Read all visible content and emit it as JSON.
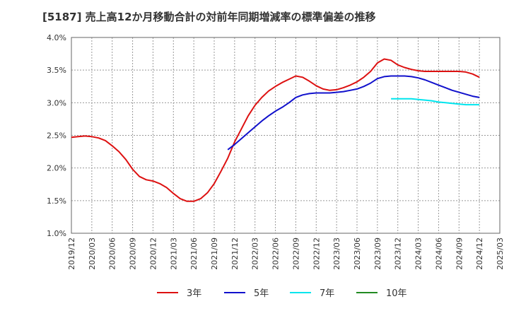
{
  "chart_data": {
    "type": "line",
    "title": "[5187]  売上高12か月移動合計の対前年同期増減率の標準偏差の推移",
    "xlabel": "",
    "ylabel": "",
    "ylim": [
      1.0,
      4.0
    ],
    "y_ticks": [
      "1.0%",
      "1.5%",
      "2.0%",
      "2.5%",
      "3.0%",
      "3.5%",
      "4.0%"
    ],
    "x_ticks": [
      "2019/12",
      "2020/03",
      "2020/06",
      "2020/09",
      "2020/12",
      "2021/03",
      "2021/06",
      "2021/09",
      "2021/12",
      "2022/03",
      "2022/06",
      "2022/09",
      "2022/12",
      "2023/03",
      "2023/06",
      "2023/09",
      "2023/12",
      "2024/03",
      "2024/06",
      "2024/09",
      "2024/12",
      "2025/03"
    ],
    "grid": true,
    "legend_position": "bottom",
    "series": [
      {
        "name": "3年",
        "color": "#dd1111",
        "points": [
          [
            "2019/12",
            2.47
          ],
          [
            "2020/01",
            2.48
          ],
          [
            "2020/02",
            2.49
          ],
          [
            "2020/03",
            2.48
          ],
          [
            "2020/04",
            2.46
          ],
          [
            "2020/05",
            2.42
          ],
          [
            "2020/06",
            2.34
          ],
          [
            "2020/07",
            2.25
          ],
          [
            "2020/08",
            2.13
          ],
          [
            "2020/09",
            1.98
          ],
          [
            "2020/10",
            1.87
          ],
          [
            "2020/11",
            1.82
          ],
          [
            "2020/12",
            1.8
          ],
          [
            "2021/01",
            1.76
          ],
          [
            "2021/02",
            1.7
          ],
          [
            "2021/03",
            1.61
          ],
          [
            "2021/04",
            1.53
          ],
          [
            "2021/05",
            1.49
          ],
          [
            "2021/06",
            1.49
          ],
          [
            "2021/07",
            1.53
          ],
          [
            "2021/08",
            1.62
          ],
          [
            "2021/09",
            1.76
          ],
          [
            "2021/10",
            1.95
          ],
          [
            "2021/11",
            2.15
          ],
          [
            "2021/12",
            2.4
          ],
          [
            "2022/01",
            2.6
          ],
          [
            "2022/02",
            2.8
          ],
          [
            "2022/03",
            2.96
          ],
          [
            "2022/04",
            3.08
          ],
          [
            "2022/05",
            3.18
          ],
          [
            "2022/06",
            3.25
          ],
          [
            "2022/07",
            3.31
          ],
          [
            "2022/08",
            3.36
          ],
          [
            "2022/09",
            3.41
          ],
          [
            "2022/10",
            3.39
          ],
          [
            "2022/11",
            3.33
          ],
          [
            "2022/12",
            3.26
          ],
          [
            "2023/01",
            3.21
          ],
          [
            "2023/02",
            3.19
          ],
          [
            "2023/03",
            3.2
          ],
          [
            "2023/04",
            3.23
          ],
          [
            "2023/05",
            3.27
          ],
          [
            "2023/06",
            3.32
          ],
          [
            "2023/07",
            3.39
          ],
          [
            "2023/08",
            3.48
          ],
          [
            "2023/09",
            3.61
          ],
          [
            "2023/10",
            3.67
          ],
          [
            "2023/11",
            3.65
          ],
          [
            "2023/12",
            3.58
          ],
          [
            "2024/01",
            3.54
          ],
          [
            "2024/02",
            3.51
          ],
          [
            "2024/03",
            3.49
          ],
          [
            "2024/04",
            3.48
          ],
          [
            "2024/05",
            3.48
          ],
          [
            "2024/06",
            3.48
          ],
          [
            "2024/07",
            3.48
          ],
          [
            "2024/08",
            3.48
          ],
          [
            "2024/09",
            3.48
          ],
          [
            "2024/10",
            3.47
          ],
          [
            "2024/11",
            3.44
          ],
          [
            "2024/12",
            3.39
          ]
        ]
      },
      {
        "name": "5年",
        "color": "#1111cc",
        "points": [
          [
            "2021/11",
            2.28
          ],
          [
            "2021/12",
            2.36
          ],
          [
            "2022/01",
            2.45
          ],
          [
            "2022/02",
            2.54
          ],
          [
            "2022/03",
            2.63
          ],
          [
            "2022/04",
            2.72
          ],
          [
            "2022/05",
            2.8
          ],
          [
            "2022/06",
            2.87
          ],
          [
            "2022/07",
            2.93
          ],
          [
            "2022/08",
            3.0
          ],
          [
            "2022/09",
            3.08
          ],
          [
            "2022/10",
            3.12
          ],
          [
            "2022/11",
            3.14
          ],
          [
            "2022/12",
            3.15
          ],
          [
            "2023/01",
            3.15
          ],
          [
            "2023/02",
            3.15
          ],
          [
            "2023/03",
            3.16
          ],
          [
            "2023/04",
            3.17
          ],
          [
            "2023/05",
            3.19
          ],
          [
            "2023/06",
            3.21
          ],
          [
            "2023/07",
            3.25
          ],
          [
            "2023/08",
            3.3
          ],
          [
            "2023/09",
            3.37
          ],
          [
            "2023/10",
            3.4
          ],
          [
            "2023/11",
            3.41
          ],
          [
            "2023/12",
            3.41
          ],
          [
            "2024/01",
            3.41
          ],
          [
            "2024/02",
            3.4
          ],
          [
            "2024/03",
            3.38
          ],
          [
            "2024/04",
            3.35
          ],
          [
            "2024/05",
            3.31
          ],
          [
            "2024/06",
            3.27
          ],
          [
            "2024/07",
            3.23
          ],
          [
            "2024/08",
            3.19
          ],
          [
            "2024/09",
            3.16
          ],
          [
            "2024/10",
            3.13
          ],
          [
            "2024/11",
            3.1
          ],
          [
            "2024/12",
            3.08
          ]
        ]
      },
      {
        "name": "7年",
        "color": "#00e5ee",
        "points": [
          [
            "2023/11",
            3.06
          ],
          [
            "2023/12",
            3.06
          ],
          [
            "2024/01",
            3.06
          ],
          [
            "2024/02",
            3.06
          ],
          [
            "2024/03",
            3.05
          ],
          [
            "2024/04",
            3.04
          ],
          [
            "2024/05",
            3.03
          ],
          [
            "2024/06",
            3.01
          ],
          [
            "2024/07",
            3.0
          ],
          [
            "2024/08",
            2.99
          ],
          [
            "2024/09",
            2.98
          ],
          [
            "2024/10",
            2.97
          ],
          [
            "2024/11",
            2.97
          ],
          [
            "2024/12",
            2.97
          ]
        ]
      },
      {
        "name": "10年",
        "color": "#228b22",
        "points": []
      }
    ]
  }
}
